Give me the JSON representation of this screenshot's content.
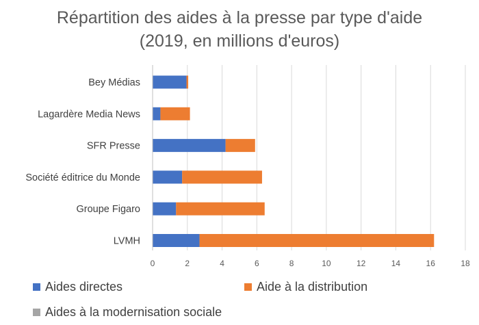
{
  "chart_data": {
    "type": "bar",
    "orientation": "horizontal",
    "stacked": true,
    "title_line1": "Répartition des aides à la presse par type d'aide",
    "title_line2": "(2019, en millions d'euros)",
    "categories": [
      "Bey Médias",
      "Lagardère Media News",
      "SFR Presse",
      "Société éditrice du Monde",
      "Groupe Figaro",
      "LVMH"
    ],
    "series": [
      {
        "name": "Aides directes",
        "color": "#4472C4",
        "values": [
          1.95,
          0.45,
          4.2,
          1.7,
          1.35,
          2.7
        ]
      },
      {
        "name": "Aide à la distribution",
        "color": "#ED7D31",
        "values": [
          0.1,
          1.7,
          1.7,
          4.6,
          5.1,
          13.5
        ]
      },
      {
        "name": "Aides à la modernisation sociale",
        "color": "#A5A5A5",
        "values": [
          0,
          0,
          0,
          0,
          0,
          0
        ]
      }
    ],
    "xlim": [
      0,
      18
    ],
    "xticks": [
      "0",
      "2",
      "4",
      "6",
      "8",
      "10",
      "12",
      "14",
      "16",
      "18"
    ],
    "grid": "vertical",
    "legend_position": "bottom"
  }
}
